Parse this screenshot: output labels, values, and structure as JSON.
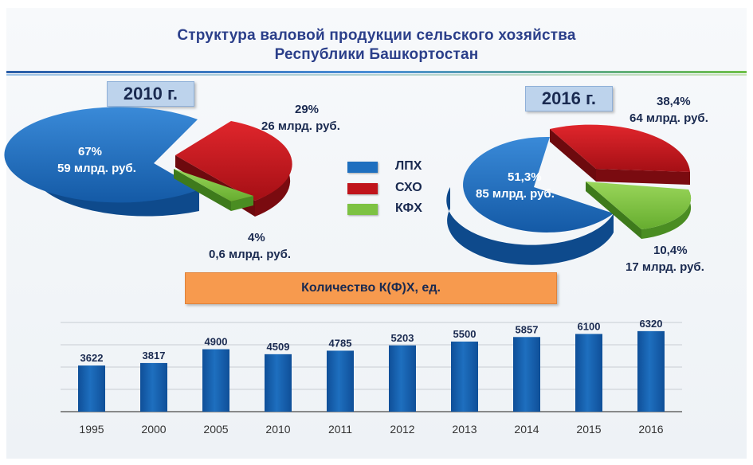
{
  "title_line1": "Структура  валовой продукции  сельского хозяйства",
  "title_line2": "Республики Башкортостан",
  "legend": [
    {
      "label": "ЛПХ",
      "color": "#1e6fbf"
    },
    {
      "label": "СХО",
      "color": "#c0141b"
    },
    {
      "label": "КФХ",
      "color": "#7dc242"
    }
  ],
  "pies": [
    {
      "year_label": "2010  г.",
      "slices": [
        {
          "category": "ЛПХ",
          "percent_label": "67%",
          "amount_label": "59 млрд. руб.",
          "value": 67
        },
        {
          "category": "СХО",
          "percent_label": "29%",
          "amount_label": "26 млрд. руб.",
          "value": 29
        },
        {
          "category": "КФХ",
          "percent_label": "4%",
          "amount_label": "0,6 млрд. руб.",
          "value": 4
        }
      ]
    },
    {
      "year_label": "2016  г.",
      "slices": [
        {
          "category": "ЛПХ",
          "percent_label": "51,3%",
          "amount_label": "85 млрд. руб.",
          "value": 51.3
        },
        {
          "category": "СХО",
          "percent_label": "38,4%",
          "amount_label": "64 млрд. руб.",
          "value": 38.4
        },
        {
          "category": "КФХ",
          "percent_label": "10,4%",
          "amount_label": "17 млрд. руб.",
          "value": 10.4
        }
      ]
    }
  ],
  "bar_title": "Количество К(Ф)Х, ед.",
  "chart_data": {
    "type": "bar",
    "categories": [
      "1995",
      "2000",
      "2005",
      "2010",
      "2011",
      "2012",
      "2013",
      "2014",
      "2015",
      "2016"
    ],
    "values": [
      3622,
      3817,
      4900,
      4509,
      4785,
      5203,
      5500,
      5857,
      6100,
      6320
    ],
    "ylim": [
      0,
      7000
    ],
    "grid": true,
    "bar_color": "#1e6fbf"
  }
}
